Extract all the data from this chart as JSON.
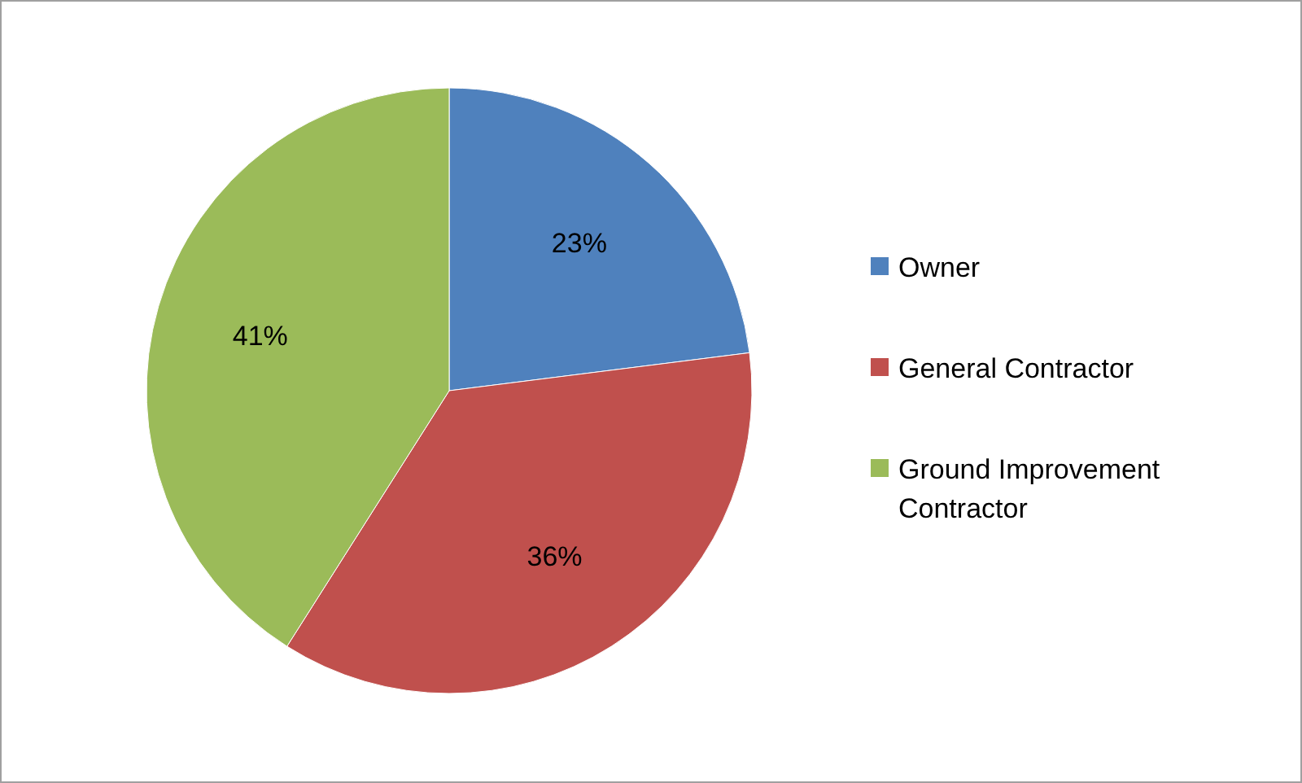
{
  "chart_data": {
    "type": "pie",
    "categories": [
      "Owner",
      "General Contractor",
      "Ground Improvement Contractor"
    ],
    "values": [
      23,
      36,
      41
    ],
    "colors": [
      "#4f81bd",
      "#c0504d",
      "#9bbb59"
    ],
    "value_labels": [
      "23%",
      "36%",
      "41%"
    ],
    "legend": "right"
  }
}
